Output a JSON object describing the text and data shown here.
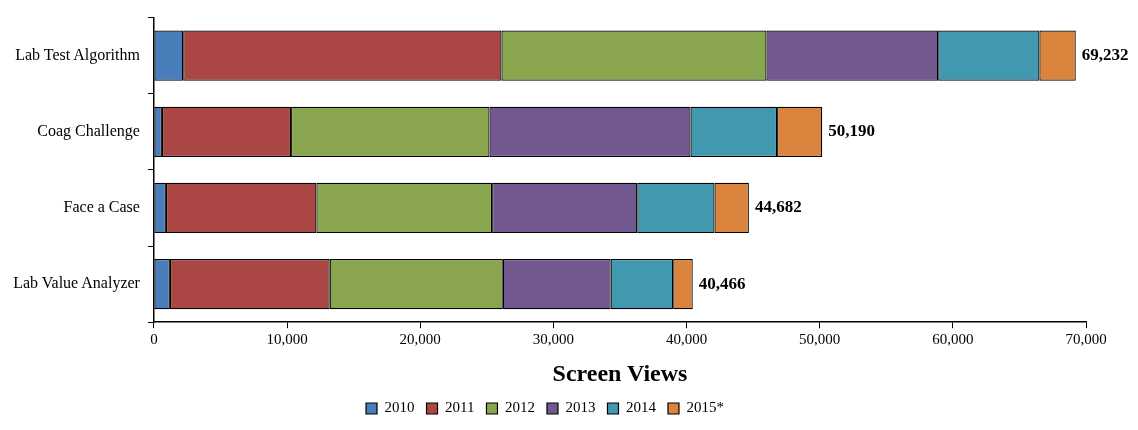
{
  "chart_data": {
    "type": "bar",
    "orientation": "horizontal",
    "stacked": true,
    "categories": [
      "Lab Test Algorithm",
      "Coag Challenge",
      "Face a Case",
      "Lab Value Analyzer"
    ],
    "series": [
      {
        "name": "2010",
        "color": "#4a7ebb",
        "values": [
          2200,
          600,
          900,
          1200
        ]
      },
      {
        "name": "2011",
        "color": "#aa4644",
        "values": [
          23900,
          9700,
          11300,
          12000
        ]
      },
      {
        "name": "2012",
        "color": "#89a54e",
        "values": [
          19900,
          14900,
          13200,
          13000
        ]
      },
      {
        "name": "2013",
        "color": "#71588f",
        "values": [
          12900,
          15100,
          10900,
          8100
        ]
      },
      {
        "name": "2014",
        "color": "#4198af",
        "values": [
          7600,
          6500,
          5800,
          4700
        ]
      },
      {
        "name": "2015*",
        "color": "#db843d",
        "values": [
          2732,
          3390,
          2582,
          1466
        ]
      }
    ],
    "totals": [
      "69,232",
      "50,190",
      "44,682",
      "40,466"
    ],
    "xlabel": "Screen Views",
    "xlim": [
      0,
      70000
    ],
    "xticks": [
      0,
      {
        "value": 10000,
        "label": "10,000"
      },
      {
        "value": 20000,
        "label": "20,000"
      },
      {
        "value": 30000,
        "label": "30,000"
      },
      {
        "value": 40000,
        "label": "40,000"
      },
      {
        "value": 50000,
        "label": "50,000"
      },
      {
        "value": 60000,
        "label": "60,000"
      },
      {
        "value": 70000,
        "label": "70,000"
      }
    ],
    "grid": false,
    "legend": "bottom"
  }
}
